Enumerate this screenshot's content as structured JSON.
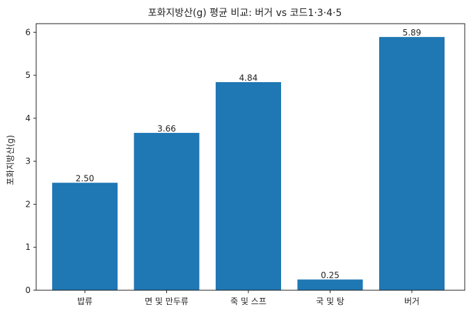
{
  "chart_data": {
    "type": "bar",
    "title": "포화지방산(g) 평균 비교: 버거 vs 코드1·3·4·5",
    "xlabel": "",
    "ylabel": "포화지방산(g)",
    "categories": [
      "밥류",
      "면 및 만두류",
      "죽 및 스프",
      "국 및 탕",
      "버거"
    ],
    "values": [
      2.5,
      3.66,
      4.84,
      0.25,
      5.89
    ],
    "value_labels": [
      "2.50",
      "3.66",
      "4.84",
      "0.25",
      "5.89"
    ],
    "ylim": [
      0,
      6.2
    ],
    "yticks": [
      0,
      1,
      2,
      3,
      4,
      5,
      6
    ],
    "ytick_labels": [
      "0",
      "1",
      "2",
      "3",
      "4",
      "5",
      "6"
    ],
    "grid": false,
    "bar_color": "#1f77b4"
  }
}
